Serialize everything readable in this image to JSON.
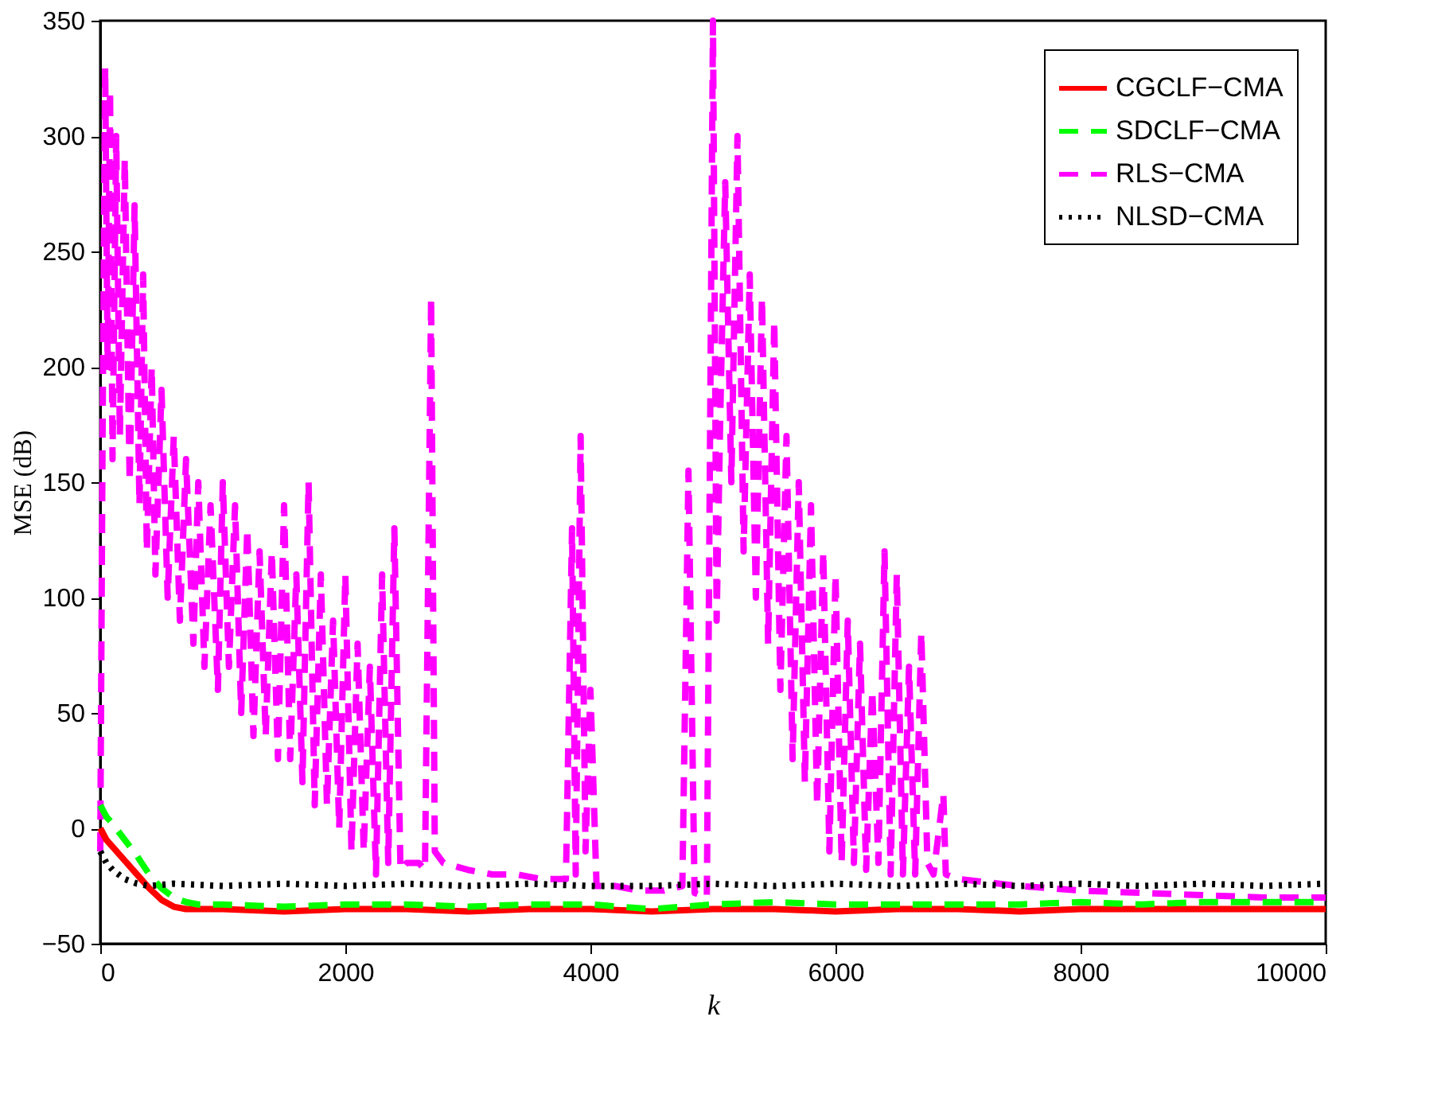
{
  "chart_data": {
    "type": "line",
    "xlabel": "k",
    "ylabel": "MSE (dB)",
    "xlim": [
      0,
      10000
    ],
    "ylim": [
      -50,
      350
    ],
    "xticks": [
      0,
      2000,
      4000,
      6000,
      8000,
      10000
    ],
    "yticks": [
      -50,
      0,
      50,
      100,
      150,
      200,
      250,
      300,
      350
    ],
    "grid": false,
    "legend": "top right",
    "series": [
      {
        "name": "CGCLF−CMA",
        "color": "#ff0000",
        "line_style": "solid",
        "x": [
          0,
          50,
          100,
          200,
          300,
          400,
          500,
          600,
          700,
          1000,
          1500,
          2000,
          2500,
          3000,
          3500,
          4000,
          4500,
          5000,
          5500,
          6000,
          6500,
          7000,
          7500,
          8000,
          8500,
          9000,
          9500,
          10000
        ],
        "values": [
          0,
          -5,
          -8,
          -14,
          -20,
          -26,
          -31,
          -34,
          -35,
          -35,
          -36,
          -35,
          -35,
          -36,
          -35,
          -35,
          -36,
          -35,
          -35,
          -36,
          -35,
          -35,
          -36,
          -35,
          -35,
          -35,
          -35,
          -35
        ]
      },
      {
        "name": "SDCLF−CMA",
        "color": "#00ff00",
        "line_style": "dashed",
        "x": [
          0,
          50,
          100,
          200,
          300,
          400,
          500,
          600,
          700,
          800,
          1000,
          1500,
          2000,
          2500,
          3000,
          3500,
          4000,
          4500,
          5000,
          5500,
          6000,
          6500,
          7000,
          7500,
          8000,
          8500,
          9000,
          9500,
          10000
        ],
        "values": [
          10,
          5,
          2,
          -5,
          -12,
          -20,
          -26,
          -30,
          -32,
          -33,
          -33,
          -34,
          -33,
          -33,
          -34,
          -33,
          -33,
          -35,
          -33,
          -32,
          -33,
          -33,
          -33,
          -33,
          -32,
          -33,
          -32,
          -32,
          -32
        ]
      },
      {
        "name": "RLS−CMA",
        "color": "#ff00ff",
        "line_style": "dashed",
        "x": [
          0,
          20,
          40,
          60,
          80,
          100,
          130,
          160,
          200,
          240,
          280,
          320,
          350,
          380,
          420,
          450,
          500,
          550,
          600,
          650,
          700,
          760,
          800,
          850,
          900,
          960,
          1000,
          1050,
          1100,
          1150,
          1200,
          1250,
          1300,
          1350,
          1400,
          1450,
          1500,
          1550,
          1600,
          1650,
          1700,
          1750,
          1800,
          1850,
          1900,
          1950,
          2000,
          2050,
          2100,
          2150,
          2200,
          2250,
          2300,
          2350,
          2400,
          2450,
          2500,
          2600,
          2650,
          2700,
          2730,
          2800,
          3000,
          3200,
          3400,
          3600,
          3800,
          3850,
          3880,
          3920,
          3960,
          4000,
          4050,
          4200,
          4400,
          4600,
          4750,
          4800,
          4850,
          4950,
          5000,
          5030,
          5060,
          5100,
          5150,
          5200,
          5250,
          5300,
          5350,
          5400,
          5450,
          5500,
          5550,
          5600,
          5650,
          5700,
          5750,
          5800,
          5850,
          5900,
          5950,
          6000,
          6050,
          6100,
          6150,
          6200,
          6250,
          6300,
          6350,
          6400,
          6450,
          6500,
          6550,
          6600,
          6650,
          6700,
          6750,
          6800,
          6880,
          6900,
          7000,
          7500,
          8000,
          8500,
          9000,
          9500,
          10000
        ],
        "values": [
          -10,
          180,
          330,
          200,
          320,
          160,
          300,
          170,
          290,
          150,
          270,
          140,
          240,
          120,
          200,
          110,
          190,
          100,
          170,
          90,
          160,
          80,
          150,
          70,
          140,
          60,
          150,
          70,
          140,
          50,
          130,
          40,
          120,
          40,
          120,
          30,
          140,
          30,
          110,
          20,
          150,
          10,
          110,
          10,
          90,
          0,
          110,
          -10,
          80,
          -10,
          70,
          -20,
          110,
          -15,
          130,
          -18,
          -15,
          -15,
          -18,
          230,
          -10,
          -15,
          -18,
          -20,
          -20,
          -22,
          -22,
          130,
          -20,
          170,
          -10,
          60,
          -25,
          -25,
          -27,
          -27,
          -25,
          155,
          -28,
          -30,
          350,
          90,
          180,
          280,
          150,
          300,
          120,
          240,
          100,
          230,
          80,
          220,
          60,
          170,
          30,
          150,
          20,
          140,
          10,
          120,
          -10,
          110,
          -15,
          90,
          -15,
          80,
          -18,
          60,
          -15,
          120,
          -20,
          110,
          -20,
          70,
          -20,
          85,
          -15,
          -20,
          15,
          -20,
          -22,
          -25,
          -27,
          -28,
          -29,
          -30,
          -30
        ]
      },
      {
        "name": "NLSD−CMA",
        "color": "#000000",
        "line_style": "dotted",
        "x": [
          0,
          50,
          100,
          200,
          300,
          400,
          600,
          1000,
          1500,
          2000,
          2500,
          3000,
          3500,
          4000,
          4500,
          5000,
          5500,
          6000,
          6500,
          7000,
          7500,
          8000,
          8500,
          9000,
          9500,
          10000
        ],
        "values": [
          -10,
          -15,
          -18,
          -22,
          -24,
          -25,
          -24,
          -25,
          -24,
          -25,
          -24,
          -25,
          -24,
          -25,
          -25,
          -24,
          -25,
          -24,
          -25,
          -24,
          -25,
          -24,
          -25,
          -24,
          -25,
          -24
        ]
      }
    ]
  }
}
